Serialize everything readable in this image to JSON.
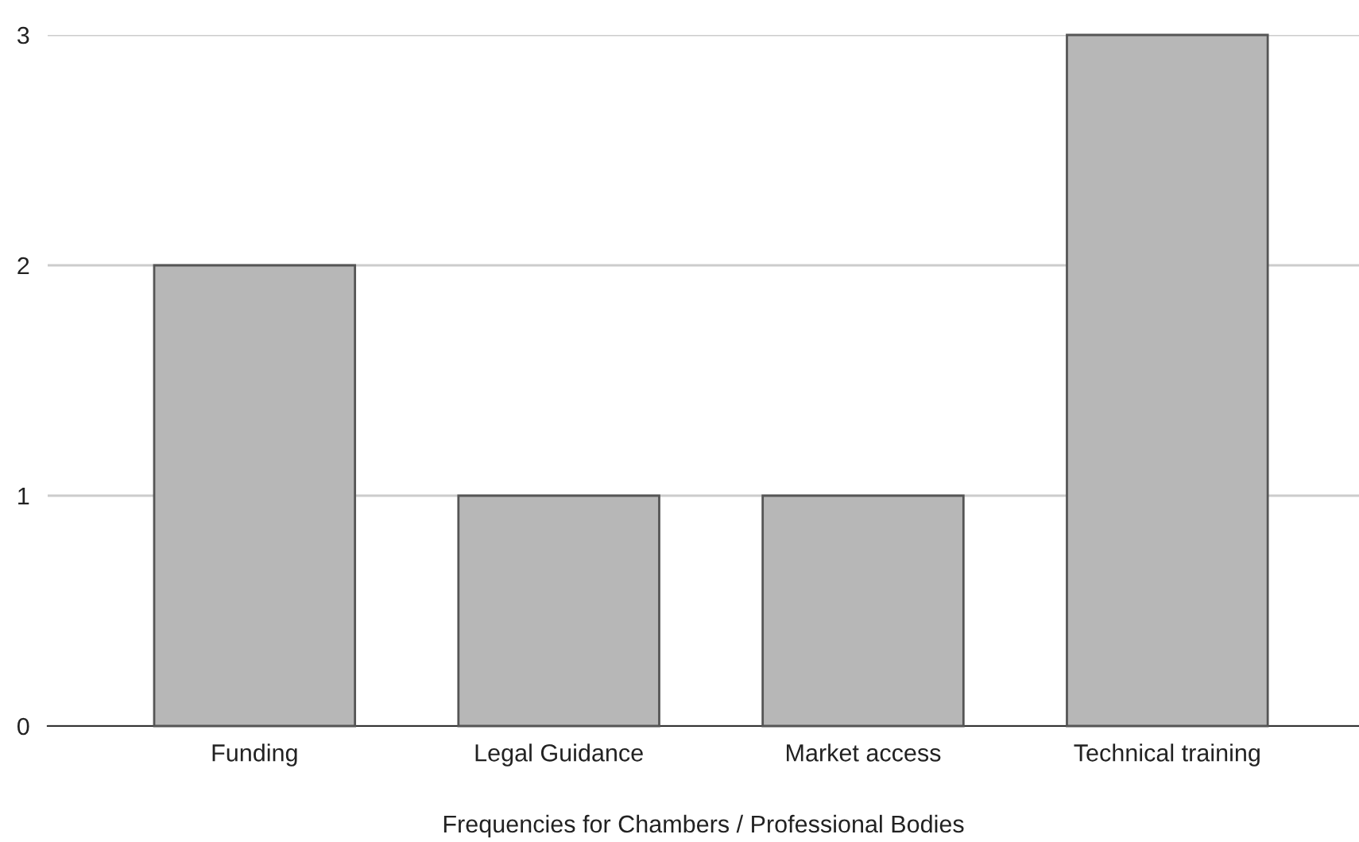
{
  "chart_data": {
    "type": "bar",
    "xlabel": "Frequencies for Chambers / Professional Bodies",
    "categories": [
      "Funding",
      "Legal Guidance",
      "Market access",
      "Technical training"
    ],
    "values": [
      2,
      1,
      1,
      3
    ],
    "color": "#b7b7b7",
    "ylim": [
      0,
      3
    ],
    "yticks": [
      0,
      1,
      2,
      3
    ],
    "grid": "y"
  }
}
